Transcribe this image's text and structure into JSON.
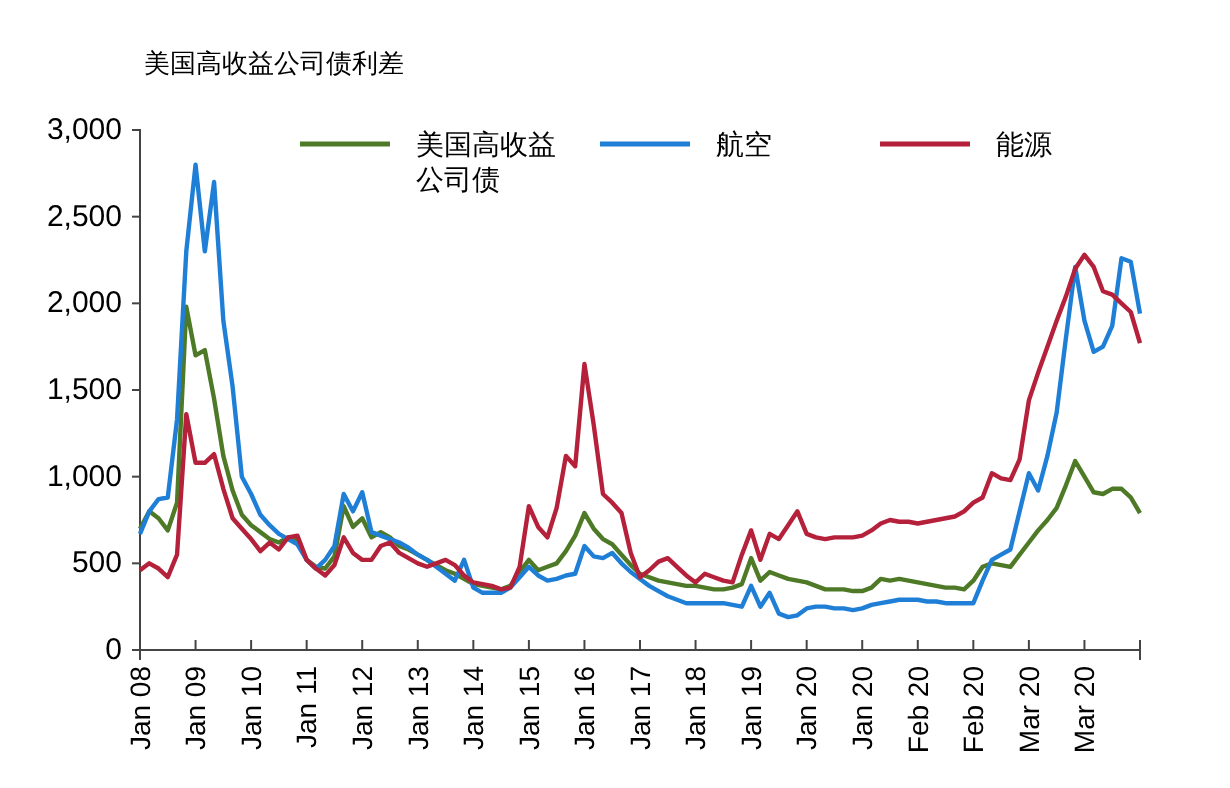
{
  "chart_data": {
    "type": "line",
    "title": "美国高收益公司债利差",
    "categories": [
      "Jan 08",
      null,
      null,
      null,
      null,
      null,
      "Jan 09",
      null,
      null,
      null,
      null,
      null,
      "Jan 10",
      null,
      null,
      null,
      null,
      null,
      "Jan 11",
      null,
      null,
      null,
      null,
      null,
      "Jan 12",
      null,
      null,
      null,
      null,
      null,
      "Jan 13",
      null,
      null,
      null,
      null,
      null,
      "Jan 14",
      null,
      null,
      null,
      null,
      null,
      "Jan 15",
      null,
      null,
      null,
      null,
      null,
      "Jan 16",
      null,
      null,
      null,
      null,
      null,
      "Jan 17",
      null,
      null,
      null,
      null,
      null,
      "Jan 18",
      null,
      null,
      null,
      null,
      null,
      "Jan 19",
      null,
      null,
      null,
      null,
      null,
      "Jan 20",
      null,
      null,
      null,
      null,
      null,
      "Jan 20",
      null,
      null,
      null,
      null,
      null,
      "Feb 20",
      null,
      null,
      null,
      null,
      null,
      "Feb 20",
      null,
      null,
      null,
      null,
      null,
      "Mar 20",
      null,
      null,
      null,
      null,
      null,
      "Mar 20",
      null,
      null,
      null,
      null,
      null,
      null
    ],
    "ylim": [
      0,
      3000
    ],
    "yticks": [
      0,
      {
        "value": 500,
        "label": "500"
      },
      {
        "value": 1000,
        "label": "1,000"
      },
      {
        "value": 1500,
        "label": "1,500"
      },
      {
        "value": 2000,
        "label": "2,000"
      },
      {
        "value": 2500,
        "label": "2,500"
      },
      {
        "value": 3000,
        "label": "3,000"
      }
    ],
    "grid": false,
    "legend": "top",
    "line_style": "solid",
    "marker": "none",
    "series": [
      {
        "name": "美国高收益公司债",
        "color": "#4e7a27",
        "values": [
          700,
          800,
          760,
          690,
          850,
          1980,
          1700,
          1730,
          1450,
          1120,
          920,
          780,
          720,
          680,
          640,
          620,
          650,
          640,
          520,
          480,
          470,
          540,
          830,
          710,
          760,
          650,
          680,
          650,
          600,
          580,
          550,
          520,
          490,
          460,
          440,
          410,
          380,
          370,
          360,
          350,
          370,
          450,
          520,
          460,
          480,
          500,
          570,
          660,
          790,
          700,
          640,
          610,
          550,
          490,
          440,
          420,
          400,
          390,
          380,
          370,
          370,
          360,
          350,
          350,
          360,
          380,
          530,
          400,
          450,
          430,
          410,
          400,
          390,
          370,
          350,
          350,
          350,
          340,
          340,
          360,
          410,
          400,
          410,
          400,
          390,
          380,
          370,
          360,
          360,
          350,
          400,
          480,
          500,
          490,
          480,
          550,
          620,
          690,
          750,
          820,
          950,
          1090,
          1000,
          910,
          900,
          930,
          930,
          880,
          790
        ]
      },
      {
        "name": "航空",
        "color": "#1f7fd6",
        "values": [
          670,
          800,
          870,
          880,
          1330,
          2300,
          2800,
          2300,
          2700,
          1900,
          1520,
          1000,
          900,
          780,
          720,
          670,
          640,
          610,
          520,
          470,
          520,
          600,
          900,
          800,
          910,
          680,
          660,
          640,
          620,
          590,
          550,
          520,
          480,
          440,
          400,
          520,
          360,
          330,
          330,
          330,
          360,
          420,
          480,
          430,
          400,
          410,
          430,
          440,
          600,
          540,
          530,
          560,
          500,
          450,
          410,
          370,
          340,
          310,
          290,
          270,
          270,
          270,
          270,
          270,
          260,
          250,
          370,
          250,
          330,
          210,
          190,
          200,
          240,
          250,
          250,
          240,
          240,
          230,
          240,
          260,
          270,
          280,
          290,
          290,
          290,
          280,
          280,
          270,
          270,
          270,
          270,
          400,
          520,
          550,
          580,
          800,
          1020,
          920,
          1120,
          1370,
          1800,
          2210,
          1900,
          1720,
          1750,
          1870,
          2260,
          2240,
          1940
        ]
      },
      {
        "name": "能源",
        "color": "#b5203a",
        "values": [
          460,
          500,
          470,
          420,
          550,
          1360,
          1080,
          1080,
          1130,
          930,
          760,
          700,
          640,
          570,
          620,
          580,
          650,
          660,
          520,
          470,
          430,
          490,
          650,
          560,
          520,
          520,
          600,
          620,
          560,
          530,
          500,
          480,
          500,
          520,
          490,
          430,
          390,
          380,
          370,
          350,
          360,
          480,
          830,
          710,
          650,
          820,
          1120,
          1060,
          1650,
          1300,
          900,
          850,
          790,
          560,
          420,
          460,
          510,
          530,
          480,
          430,
          390,
          440,
          420,
          400,
          390,
          550,
          690,
          520,
          670,
          640,
          720,
          800,
          670,
          650,
          640,
          650,
          650,
          650,
          660,
          690,
          730,
          750,
          740,
          740,
          730,
          740,
          750,
          760,
          770,
          800,
          850,
          880,
          1020,
          990,
          980,
          1100,
          1440,
          1600,
          1750,
          1900,
          2040,
          2200,
          2280,
          2210,
          2070,
          2050,
          2000,
          1950,
          1770
        ]
      }
    ]
  }
}
